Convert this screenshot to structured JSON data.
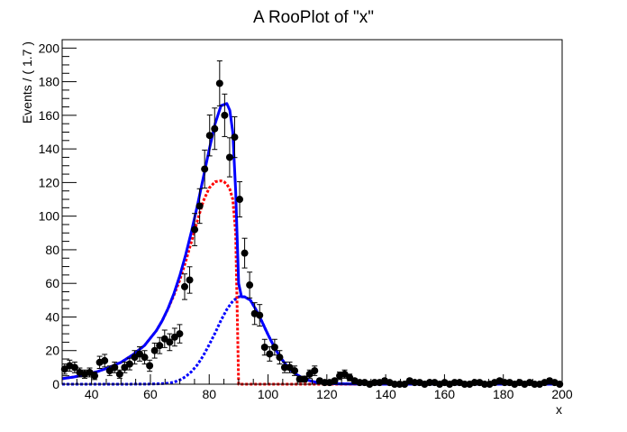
{
  "chart_data": {
    "type": "scatter",
    "title": "A RooPlot of \"x\"",
    "xlabel": "x",
    "ylabel": "Events / ( 1.7 )",
    "xlim": [
      30,
      200
    ],
    "ylim": [
      0,
      205
    ],
    "x_ticks": [
      40,
      60,
      80,
      100,
      120,
      140,
      160,
      180,
      200
    ],
    "y_ticks": [
      0,
      20,
      40,
      60,
      80,
      100,
      120,
      140,
      160,
      180,
      200
    ],
    "grid": false,
    "legend": "none",
    "colors": {
      "data_points": "#000000",
      "total_fit": "#0000ff",
      "component_left": "#ff0000",
      "component_right": "#0000ff"
    },
    "series": [
      {
        "kind": "points-with-errors",
        "x": [
          30.85,
          32.55,
          34.25,
          35.95,
          37.65,
          39.35,
          41.05,
          42.75,
          44.45,
          46.15,
          47.85,
          49.55,
          51.25,
          52.95,
          54.65,
          56.35,
          58.05,
          59.75,
          61.45,
          63.15,
          64.85,
          66.55,
          68.25,
          69.95,
          71.65,
          73.35,
          75.05,
          76.75,
          78.45,
          80.15,
          81.85,
          83.55,
          85.25,
          86.95,
          88.65,
          90.35,
          92.05,
          93.75,
          95.45,
          97.15,
          98.85,
          100.55,
          102.25,
          103.95,
          105.65,
          107.35,
          109.05,
          110.75,
          112.45,
          114.15,
          115.85,
          117.55,
          119.25,
          120.95,
          122.65,
          124.35,
          126.05,
          127.75,
          129.45,
          131.15,
          132.85,
          134.55,
          136.25,
          137.95,
          139.65,
          141.35,
          143.05,
          144.75,
          146.45,
          148.15,
          149.85,
          151.55,
          153.25,
          154.95,
          156.65,
          158.35,
          160.05,
          161.75,
          163.45,
          165.15,
          166.85,
          168.55,
          170.25,
          171.95,
          173.65,
          175.35,
          177.05,
          178.75,
          180.45,
          182.15,
          183.85,
          185.55,
          187.25,
          188.95,
          190.65,
          192.35,
          194.05,
          195.75,
          197.45,
          199.15
        ],
        "y": [
          9,
          11,
          10,
          7,
          6,
          7,
          5,
          13,
          14,
          8,
          10,
          6,
          10,
          12,
          16,
          18,
          16,
          11,
          20,
          23,
          27,
          25,
          28,
          30,
          58,
          62,
          92,
          106,
          128,
          148,
          152,
          179,
          160,
          135,
          147,
          110,
          78,
          59,
          42,
          41,
          22,
          18,
          22,
          16,
          10,
          10,
          8,
          3,
          3,
          6,
          8,
          2,
          1,
          1,
          2,
          5,
          6,
          4,
          2,
          1,
          1,
          0,
          1,
          1,
          2,
          1,
          0,
          0,
          0,
          2,
          1,
          1,
          0,
          1,
          1,
          0,
          1,
          0,
          1,
          1,
          0,
          0,
          1,
          1,
          0,
          0,
          1,
          2,
          1,
          1,
          0,
          1,
          0,
          1,
          0,
          0,
          1,
          2,
          1,
          0
        ]
      },
      {
        "kind": "curve",
        "component": "total",
        "x": [
          30,
          34,
          38,
          42,
          46,
          50,
          54,
          58,
          62,
          64,
          66,
          68,
          70,
          72,
          74,
          76,
          78,
          80,
          82,
          84,
          86,
          87,
          88,
          89,
          90,
          91,
          92,
          94,
          96,
          98,
          100,
          102,
          104,
          106,
          108,
          110,
          112,
          114,
          116,
          118,
          120,
          124,
          130,
          140,
          160,
          180,
          200
        ],
        "y": [
          3.3,
          4.3,
          5.7,
          7.5,
          10,
          13,
          17.5,
          23,
          31.8,
          37.7,
          45,
          54,
          64.6,
          77,
          91,
          106.6,
          123,
          139.6,
          155,
          165.7,
          167,
          163,
          150,
          115,
          60,
          52,
          52,
          50,
          44,
          37,
          29.5,
          22.5,
          16.5,
          11.8,
          8,
          5.5,
          3.4,
          2.2,
          1.3,
          0.8,
          0.5,
          0.2,
          0.1,
          0,
          0,
          0,
          0
        ]
      },
      {
        "kind": "curve",
        "component": "left",
        "x": [
          30,
          34,
          38,
          42,
          46,
          50,
          54,
          58,
          62,
          64,
          66,
          68,
          70,
          72,
          74,
          76,
          78,
          80,
          82,
          84,
          85,
          86,
          87,
          88,
          89,
          90,
          95,
          100,
          150,
          200
        ],
        "y": [
          3.3,
          4.3,
          5.7,
          7.5,
          10,
          13,
          17.5,
          23,
          31.8,
          37.7,
          44.8,
          53,
          62,
          73,
          85,
          97.5,
          109,
          116.7,
          120.5,
          121,
          120.5,
          119,
          116,
          110,
          90,
          0,
          0,
          0,
          0,
          0
        ]
      },
      {
        "kind": "curve",
        "component": "right",
        "x": [
          30,
          50,
          60,
          64,
          66,
          68,
          70,
          72,
          74,
          76,
          78,
          80,
          82,
          84,
          86,
          88,
          90,
          92,
          94,
          96,
          98,
          100,
          102,
          104,
          106,
          108,
          110,
          112,
          114,
          116,
          118,
          120,
          124,
          130,
          140,
          160,
          180,
          200
        ],
        "y": [
          0,
          0,
          0.1,
          0.3,
          0.6,
          1.2,
          2.5,
          4.5,
          7.5,
          11.6,
          17,
          23.5,
          30.5,
          38,
          44.5,
          49.5,
          52,
          52,
          50,
          44,
          37,
          29.5,
          22.5,
          16.5,
          11.8,
          8,
          5.5,
          3.4,
          2.2,
          1.3,
          0.8,
          0.5,
          0.2,
          0.1,
          0,
          0,
          0,
          0
        ]
      }
    ]
  }
}
